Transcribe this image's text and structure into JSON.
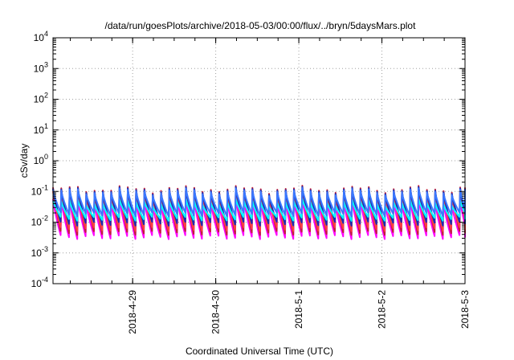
{
  "chart_data": {
    "type": "line",
    "title": "/data/run/goesPlots/archive/2018-05-03/00:00/flux/../bryn/5daysMars.plot",
    "xlabel": "Coordinated Universal Time (UTC)",
    "ylabel": "cSv/day",
    "yscale": "log",
    "ylim": [
      0.0001,
      10000
    ],
    "y_ticks": [
      {
        "base": "10",
        "exp": "-4",
        "value": 0.0001
      },
      {
        "base": "10",
        "exp": "-3",
        "value": 0.001
      },
      {
        "base": "10",
        "exp": "-2",
        "value": 0.01
      },
      {
        "base": "10",
        "exp": "-1",
        "value": 0.1
      },
      {
        "base": "10",
        "exp": "0",
        "value": 1
      },
      {
        "base": "10",
        "exp": "1",
        "value": 10
      },
      {
        "base": "10",
        "exp": "2",
        "value": 100
      },
      {
        "base": "10",
        "exp": "3",
        "value": 1000
      },
      {
        "base": "10",
        "exp": "4",
        "value": 10000
      }
    ],
    "xlim": [
      "2018-04-28 01:00",
      "2018-05-03 00:00"
    ],
    "x_ticks": [
      "2018-4-29",
      "2018-4-30",
      "2018-5-1",
      "2018-5-2",
      "2018-5-3"
    ],
    "grid": true,
    "pattern": {
      "description": "sawtooth",
      "start": "2018-04-28 01:00",
      "cycle_hours": 2.4,
      "cycles": 50
    },
    "series": [
      {
        "color": "#ff00ff",
        "peak": 0.05,
        "trough": 0.0033
      },
      {
        "color": "#c0203a",
        "peak": 0.12,
        "trough": 0.0045
      },
      {
        "color": "#ff4040",
        "peak": 0.09,
        "trough": 0.006
      },
      {
        "color": "#1a2fb0",
        "peak": 0.11,
        "trough": 0.009
      },
      {
        "color": "#00ffff",
        "peak": 0.045,
        "trough": 0.013
      },
      {
        "color": "#3a78ff",
        "peak": 0.1,
        "trough": 0.018
      }
    ]
  }
}
